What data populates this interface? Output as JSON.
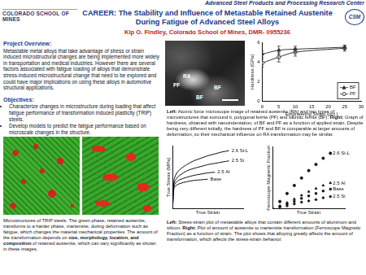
{
  "header": {
    "center": "Advanced Steel Products and Processing Research Center",
    "logo": "COLORADO SCHOOL OF MINES",
    "badge": "CSM"
  },
  "title": [
    "CAREER: The Stability and Influence of Metastable Retained Austenite",
    "During Fatigue of Advanced Steel Alloys"
  ],
  "author": "Kip O. Findley, Colorado School of Mines, DMR- 0955236",
  "overview": {
    "heading": "Project Overview:",
    "text": "Metastable metal alloys that take advantage of stress or strain induced microstructural changes are being implemented more widely in transportation and medical industries. However there are several factors associated with fatigue loading of alloys that demonstrate stress-induced microstructural change that need to be explored and could have major implications on using these alloys in automotive structural applications."
  },
  "objectives": {
    "heading": "Objectives:",
    "items": [
      "Characterize changes in microstructure during loading that affect fatigue performance of transformation induced plasticity (TRIP) steels.",
      "Develop models to predict the fatigue performance based on microscale changes in the structure."
    ]
  },
  "afm_labels": [
    "RA",
    "PF",
    "BF",
    "BF"
  ],
  "captions": {
    "afm": [
      {
        "text": "Left:",
        "bold": true
      },
      {
        "text": " Atomic force microscope image of retained austenite (RA) and two types of microstructures that surround it, polygonal ferrite (PF) and bainitic ferrite (BF). "
      },
      {
        "text": "Right:",
        "bold": true
      },
      {
        "text": " Graph of hardness, obtained with nanoindentation, of BF and PF as a function of applied strain.  Despite being very different initially, the hardness of PF and BF is comparable at larger amounts of deformation, so their mechanical influence on RA transformation may be similar."
      }
    ],
    "micro": [
      {
        "text": "Microstructures of TRIP steels.  The green phase, retained austenite, transforms to a harder phase, martensite, during deformation such as fatigue, which changes the material mechanical properties.  The amount of the transformation depends on "
      },
      {
        "text": "size, morphology, location, and composition",
        "bold": true
      },
      {
        "text": " of retained austenite, which can vary significantly as shown in these images."
      }
    ],
    "curves": [
      {
        "text": "Left:",
        "bold": true
      },
      {
        "text": " Stress-strain plot of metastable alloys that contain different amounts of aluminum and silicon. "
      },
      {
        "text": "Right:",
        "bold": true
      },
      {
        "text": " Plot of amount of austenite to martensite transformation (Ferroscope Magnetic Fraction) as a function of strain. The plot shows that alloying greatly affects the amount of transformation, which affects the stress-strain behavior."
      }
    ]
  },
  "chart_data": [
    {
      "type": "line",
      "x_label": "Engineering Strain (pct.)",
      "y_label": "Hardness (GPa)",
      "x": [
        0,
        5,
        10,
        25
      ],
      "series": [
        {
          "name": "BF",
          "color": "#333333",
          "marker": "triangle",
          "values": [
            4.8,
            5.2,
            5.3,
            5.5
          ],
          "errors": [
            0.3,
            0.4,
            0.3,
            0.2
          ]
        },
        {
          "name": "PF",
          "color": "#333333",
          "marker": "circle-open",
          "values": [
            3.9,
            4.5,
            5.0,
            5.4
          ],
          "errors": [
            0.4,
            0.5,
            0.4,
            0.3
          ]
        }
      ],
      "xlim": [
        0,
        30
      ],
      "xticks": [
        0,
        5,
        10,
        15,
        20,
        25,
        30
      ],
      "ylim": [
        0,
        6
      ],
      "yticks": [
        0,
        2,
        4,
        6
      ],
      "grid": false,
      "legend": "bottom-right"
    },
    {
      "type": "line",
      "x_label": "True Strain",
      "y_label": "True Stress (MPa)",
      "x": [
        0,
        0.02,
        0.05,
        0.1,
        0.2,
        0.3,
        0.4,
        0.5,
        0.6,
        0.7,
        0.8
      ],
      "series": [
        {
          "name": "2.6 Si-L",
          "color": "#111111",
          "values": [
            0,
            0.45,
            0.55,
            0.62,
            0.7,
            0.76,
            0.8,
            0.84,
            0.87,
            0.9,
            0.92
          ]
        },
        {
          "name": "2.5 Si",
          "color": "#111111",
          "values": [
            0,
            0.4,
            0.47,
            0.53,
            0.6,
            0.64,
            0.67,
            0.7,
            0.72,
            0.74,
            0.76
          ]
        },
        {
          "name": "2.5 Al",
          "color": "#111111",
          "values": [
            0,
            0.36,
            0.42,
            0.46,
            0.5,
            0.53,
            0.55,
            0.57,
            0.58,
            null,
            null
          ]
        },
        {
          "name": "Base",
          "color": "#111111",
          "values": [
            0,
            0.33,
            0.37,
            0.4,
            0.43,
            0.45,
            0.46,
            0.47,
            null,
            null,
            null
          ]
        }
      ],
      "xlim": [
        0,
        1
      ],
      "ylim": [
        0,
        1
      ],
      "tick_labels": false,
      "grid": false,
      "legend": "inline"
    },
    {
      "type": "scatter",
      "x_label": "True Strain",
      "y_label": "Ferroscope Magnetic Fraction",
      "x": [
        0,
        0.1,
        0.2,
        0.3,
        0.4,
        0.5,
        0.6,
        0.7,
        0.8
      ],
      "series": [
        {
          "name": "2.6 Si-L",
          "color": "#111111",
          "marker": "circle",
          "values": [
            0,
            0.12,
            0.25,
            0.38,
            0.5,
            0.62,
            0.72,
            0.82,
            0.9
          ]
        },
        {
          "name": "2.5 Al",
          "color": "#111111",
          "marker": "triangle",
          "values": [
            0,
            0.05,
            0.1,
            0.16,
            0.22,
            0.28,
            0.33,
            0.38,
            0.42
          ]
        },
        {
          "name": "Base",
          "color": "#111111",
          "marker": "square",
          "values": [
            0,
            0.04,
            0.08,
            0.12,
            0.17,
            0.21,
            0.25,
            0.29,
            0.32
          ]
        },
        {
          "name": "2.5 Si",
          "color": "#111111",
          "marker": "diamond",
          "values": [
            0,
            0.03,
            0.05,
            0.08,
            0.11,
            0.13,
            0.15,
            0.18,
            0.2
          ]
        }
      ],
      "xlim": [
        0,
        1
      ],
      "ylim": [
        0,
        1
      ],
      "tick_labels": false,
      "grid": false,
      "legend": "inline"
    }
  ]
}
